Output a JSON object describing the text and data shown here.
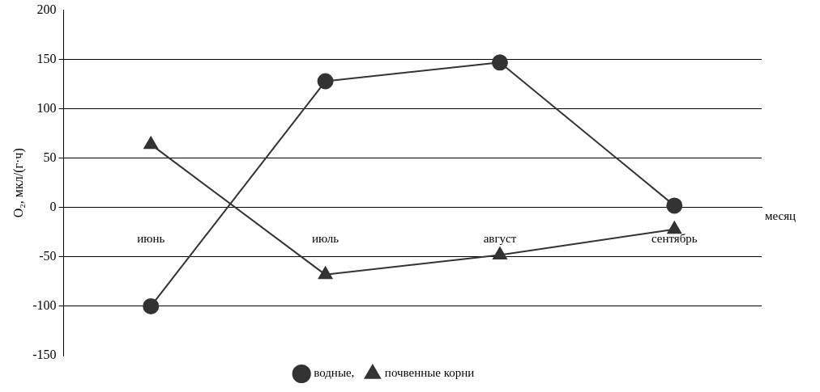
{
  "chart_data": {
    "type": "line",
    "xlabel": "месяц",
    "ylabel": "O₂, мкл/(г·ч)",
    "categories": [
      "июнь",
      "июль",
      "август",
      "сентябрь"
    ],
    "series": [
      {
        "name": "водные,",
        "color": "#333333",
        "marker": "circle",
        "values": [
          -100,
          128,
          147,
          2
        ]
      },
      {
        "name": "почвенные корни",
        "color": "#333333",
        "marker": "triangle",
        "values": [
          64,
          -68,
          -48,
          -22
        ]
      }
    ],
    "ylim": [
      -150,
      200
    ],
    "yticks": [
      -150,
      -100,
      -50,
      0,
      50,
      100,
      150,
      200
    ],
    "grid": "y",
    "legend": "bottom",
    "line_style": "solid"
  }
}
